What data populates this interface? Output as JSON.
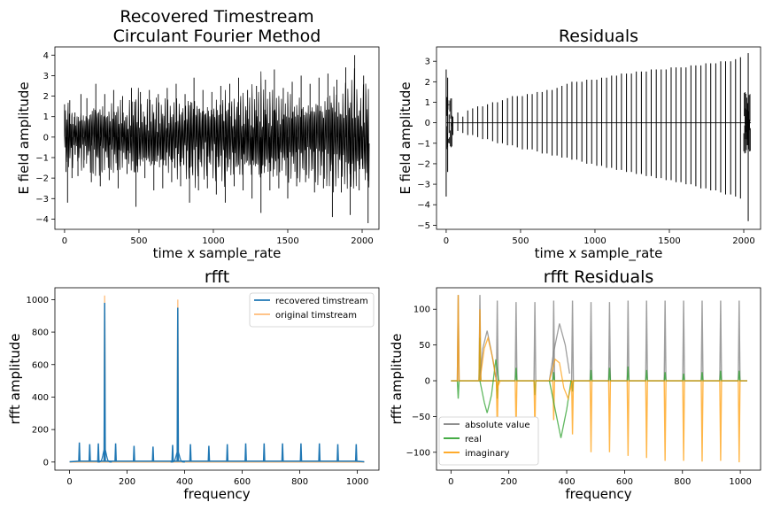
{
  "chart_data": [
    {
      "type": "line",
      "title": "Recovered Timestream\nCirculant Fourier Method",
      "xlabel": "time x sample_rate",
      "ylabel": "E field amplitude",
      "xlim": [
        -65,
        2113
      ],
      "ylim": [
        -4.5,
        4.4
      ],
      "xticks": [
        0,
        500,
        1000,
        1500,
        2000
      ],
      "yticks": [
        -4,
        -3,
        -2,
        -1,
        0,
        1,
        2,
        3,
        4
      ],
      "series": [
        {
          "color": "#000000",
          "linewidth": 0.8,
          "x": [
            0,
            10,
            20,
            35,
            50,
            70,
            90,
            110,
            130,
            150,
            180,
            210,
            240,
            270,
            300,
            330,
            360,
            390,
            420,
            450,
            480,
            510,
            540,
            570,
            600,
            630,
            660,
            690,
            720,
            750,
            780,
            810,
            840,
            870,
            900,
            930,
            960,
            990,
            1020,
            1050,
            1080,
            1110,
            1140,
            1170,
            1200,
            1230,
            1260,
            1290,
            1320,
            1350,
            1380,
            1410,
            1440,
            1470,
            1500,
            1530,
            1560,
            1590,
            1620,
            1650,
            1680,
            1710,
            1740,
            1770,
            1800,
            1830,
            1860,
            1890,
            1920,
            1950,
            1980,
            2010,
            2040
          ],
          "y": [
            1.6,
            -1.7,
            -3.2,
            1.8,
            -2.0,
            1.2,
            -1.9,
            2.1,
            -1.5,
            1.9,
            -2.2,
            2.6,
            -2.4,
            2.1,
            -2.1,
            2.3,
            -2.5,
            2.0,
            -1.8,
            2.4,
            -3.4,
            2.2,
            -2.0,
            2.3,
            -2.6,
            2.1,
            -2.5,
            2.4,
            -2.2,
            2.6,
            -2.4,
            2.1,
            -3.2,
            2.9,
            -2.6,
            2.3,
            -2.5,
            2.2,
            -2.8,
            2.5,
            -3.2,
            2.6,
            -2.4,
            2.9,
            -2.6,
            2.3,
            -3.0,
            2.5,
            -3.7,
            2.8,
            -2.6,
            3.3,
            -2.5,
            2.4,
            -3.0,
            2.7,
            -2.4,
            3.0,
            -2.2,
            2.6,
            -2.7,
            2.9,
            -2.5,
            3.1,
            -3.9,
            2.8,
            -2.7,
            3.4,
            -3.8,
            4.0,
            -2.6,
            3.0,
            -4.2
          ]
        }
      ]
    },
    {
      "type": "line",
      "title": "Residuals",
      "xlabel": "time x sample_rate",
      "ylabel": "E field amplitude",
      "xlim": [
        -65,
        2113
      ],
      "ylim": [
        -5.2,
        3.7
      ],
      "xticks": [
        0,
        500,
        1000,
        1500,
        2000
      ],
      "yticks": [
        -5,
        -4,
        -3,
        -2,
        -1,
        0,
        1,
        2,
        3
      ],
      "series": [
        {
          "color": "#000000",
          "linewidth": 0.8,
          "spikes_x": [
            0,
            10,
            20,
            45,
            78,
            112,
            145,
            178,
            212,
            245,
            278,
            312,
            345,
            378,
            412,
            445,
            478,
            512,
            545,
            578,
            612,
            645,
            678,
            712,
            745,
            778,
            812,
            845,
            878,
            912,
            945,
            978,
            1012,
            1045,
            1078,
            1112,
            1145,
            1178,
            1212,
            1245,
            1278,
            1312,
            1345,
            1378,
            1412,
            1445,
            1478,
            1512,
            1545,
            1578,
            1612,
            1645,
            1678,
            1712,
            1745,
            1778,
            1812,
            1845,
            1878,
            1912,
            1945,
            1978,
            2010,
            2030
          ],
          "spikes_up": [
            2.6,
            2.2,
            0.4,
            0.3,
            0.5,
            0.3,
            0.6,
            0.7,
            0.8,
            0.8,
            0.9,
            1.0,
            1.0,
            1.1,
            1.2,
            1.3,
            1.3,
            1.3,
            1.4,
            1.4,
            1.5,
            1.5,
            1.6,
            1.6,
            1.7,
            1.8,
            1.9,
            2.0,
            2.0,
            2.0,
            2.1,
            2.1,
            2.1,
            2.2,
            2.2,
            2.3,
            2.3,
            2.4,
            2.4,
            2.4,
            2.5,
            2.5,
            2.5,
            2.6,
            2.6,
            2.6,
            2.6,
            2.7,
            2.7,
            2.7,
            2.7,
            2.8,
            2.8,
            2.8,
            2.9,
            2.9,
            2.9,
            3.0,
            3.0,
            3.0,
            3.1,
            3.2,
            0.7,
            3.4
          ],
          "spikes_down": [
            -3.6,
            -2.4,
            -0.5,
            -0.6,
            -0.4,
            -0.5,
            -0.6,
            -0.6,
            -0.7,
            -0.8,
            -0.8,
            -0.9,
            -1.0,
            -1.0,
            -1.1,
            -1.1,
            -1.2,
            -1.3,
            -1.3,
            -1.3,
            -1.4,
            -1.5,
            -1.5,
            -1.6,
            -1.6,
            -1.7,
            -1.7,
            -1.8,
            -1.8,
            -1.9,
            -2.0,
            -2.0,
            -2.1,
            -2.1,
            -2.2,
            -2.2,
            -2.3,
            -2.3,
            -2.4,
            -2.4,
            -2.5,
            -2.5,
            -2.6,
            -2.6,
            -2.7,
            -2.7,
            -2.8,
            -2.8,
            -2.9,
            -2.9,
            -3.0,
            -3.0,
            -3.1,
            -3.2,
            -3.2,
            -3.3,
            -3.3,
            -3.4,
            -3.5,
            -3.5,
            -3.6,
            -3.7,
            -0.8,
            -4.8
          ]
        }
      ]
    },
    {
      "type": "line",
      "title": "rfft",
      "xlabel": "frequency",
      "ylabel": "rfft amplitude",
      "xlim": [
        -51,
        1075
      ],
      "ylim": [
        -50,
        1073
      ],
      "xticks": [
        0,
        200,
        400,
        600,
        800,
        1000
      ],
      "yticks": [
        0,
        200,
        400,
        600,
        800,
        1000
      ],
      "legend": "top-right",
      "series": [
        {
          "name": "recovered timstream",
          "color": "#1f77b4",
          "spikes_x": [
            34,
            70,
            100,
            122,
            160,
            224,
            290,
            358,
            376,
            420,
            484,
            548,
            612,
            676,
            740,
            804,
            868,
            932,
            996
          ],
          "spikes_y": [
            120,
            110,
            115,
            980,
            115,
            100,
            95,
            105,
            950,
            110,
            100,
            110,
            115,
            115,
            115,
            115,
            115,
            110,
            110
          ]
        },
        {
          "name": "original timstream",
          "color": "#ffbb78",
          "spikes_x": [
            122,
            376
          ],
          "spikes_y": [
            1025,
            1000
          ]
        }
      ]
    },
    {
      "type": "line",
      "title": "rfft Residuals",
      "xlabel": "frequency",
      "ylabel": "rfft amplitude",
      "xlim": [
        -50,
        1070
      ],
      "ylim": [
        -125,
        130
      ],
      "xticks": [
        0,
        200,
        400,
        600,
        800,
        1000
      ],
      "yticks": [
        -100,
        -50,
        0,
        50,
        100
      ],
      "legend": "bottom-left",
      "series": [
        {
          "name": "absolute value",
          "color": "#7f7f7f",
          "spikes_x": [
            25,
            100,
            160,
            225,
            290,
            355,
            420,
            484,
            548,
            612,
            676,
            740,
            804,
            868,
            932,
            996
          ],
          "spikes_y": [
            120,
            120,
            112,
            110,
            110,
            112,
            112,
            110,
            110,
            112,
            112,
            112,
            112,
            112,
            112,
            112
          ]
        },
        {
          "name": "real",
          "color": "#2ca02c",
          "spikes_x": [
            25,
            100,
            160,
            225,
            290,
            355,
            420,
            484,
            548,
            612,
            676,
            740,
            804,
            868,
            932,
            996
          ],
          "spikes_y": [
            -25,
            60,
            -25,
            18,
            -20,
            12,
            -15,
            15,
            18,
            20,
            15,
            12,
            10,
            12,
            14,
            14
          ]
        },
        {
          "name": "imaginary",
          "color": "#ff9f0e",
          "spikes_x": [
            25,
            100,
            160,
            225,
            290,
            355,
            420,
            484,
            548,
            612,
            676,
            740,
            804,
            868,
            932,
            996
          ],
          "spikes_y": [
            120,
            100,
            -75,
            -70,
            -70,
            -55,
            -75,
            -100,
            -100,
            -105,
            -108,
            -112,
            -112,
            -113,
            -112,
            -114
          ]
        }
      ]
    }
  ]
}
